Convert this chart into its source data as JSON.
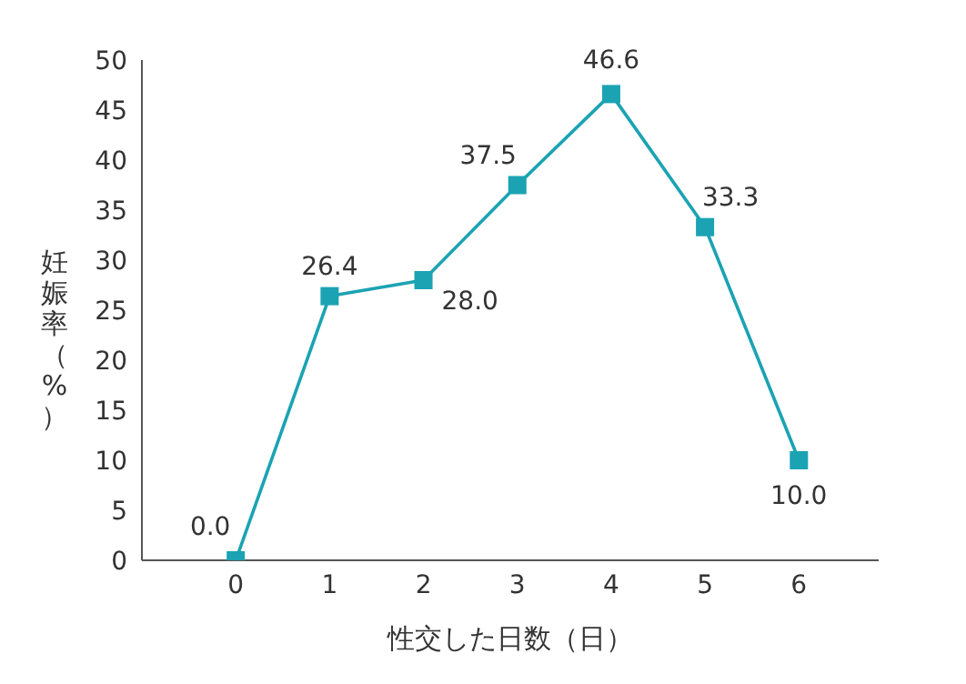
{
  "chart_data": {
    "type": "line",
    "xlabel": "性交した日数（日）",
    "ylabel": "妊娠率（%）",
    "categories": [
      "0",
      "1",
      "2",
      "3",
      "4",
      "5",
      "6"
    ],
    "series": [
      {
        "color": "#1ba3b3",
        "values": [
          0.0,
          26.4,
          28.0,
          37.5,
          46.6,
          33.3,
          10.0
        ],
        "value_labels": [
          "0.0",
          "26.4",
          "28.0",
          "37.5",
          "46.6",
          "33.3",
          "10.0"
        ]
      }
    ],
    "ylim": [
      0,
      50
    ],
    "yticks": [
      0,
      5,
      10,
      15,
      20,
      25,
      30,
      35,
      40,
      45,
      50
    ],
    "grid": false,
    "legend": false,
    "marker": "square",
    "line_style": "solid"
  }
}
